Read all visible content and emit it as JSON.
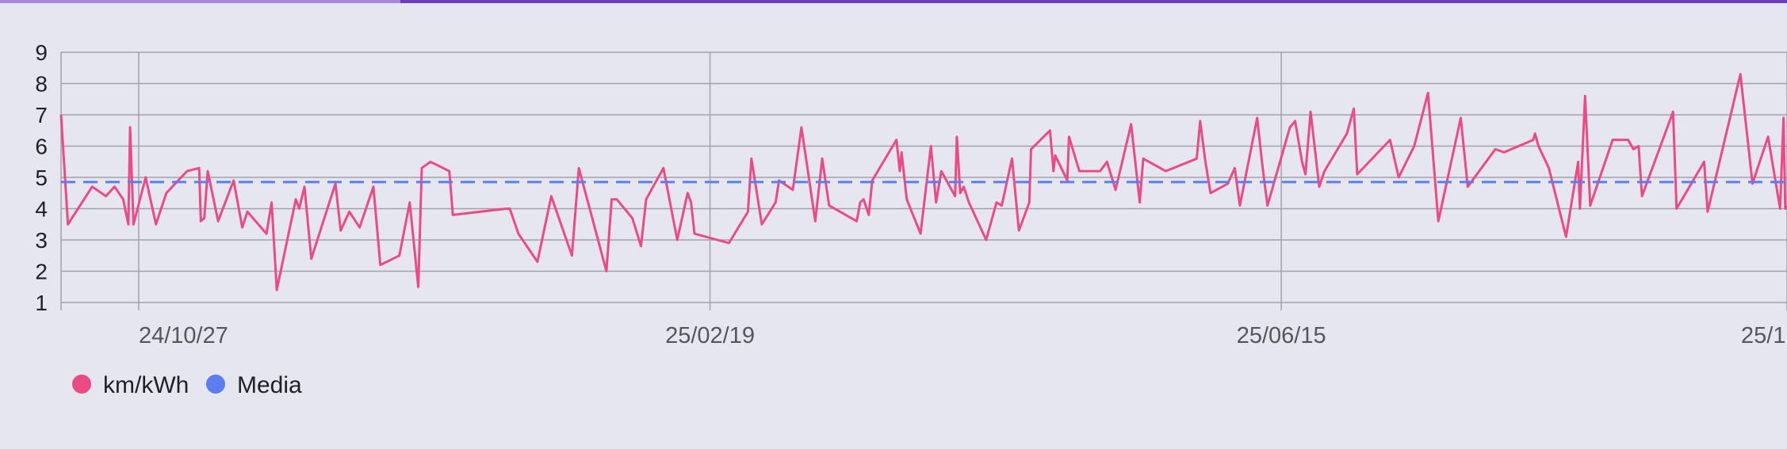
{
  "progress": {
    "fraction": 0.224,
    "track_color": "#6a3fb8",
    "fill_color": "#a889e0"
  },
  "chart_data": {
    "type": "line",
    "y_ticks": [
      "1",
      "2",
      "3",
      "4",
      "5",
      "6",
      "7",
      "8",
      "9"
    ],
    "ylim": [
      1,
      9
    ],
    "x_ticks": [
      "24/10/27",
      "25/02/19",
      "25/06/15",
      "25/1"
    ],
    "x_tick_positions": [
      0.045,
      0.376,
      0.707,
      1.0
    ],
    "grid": {
      "horizontal": true,
      "vertical": true
    },
    "legend": {
      "placement": "bottom-left",
      "entries": [
        {
          "name": "km/kWh",
          "color": "#ec4a85"
        },
        {
          "name": "Media",
          "color": "#5c7cf0"
        }
      ]
    },
    "series": [
      {
        "name": "km/kWh",
        "color": "#ec4a85",
        "points": [
          [
            0.0,
            7.0
          ],
          [
            0.004,
            3.5
          ],
          [
            0.018,
            4.7
          ],
          [
            0.026,
            4.4
          ],
          [
            0.031,
            4.7
          ],
          [
            0.036,
            4.3
          ],
          [
            0.039,
            3.5
          ],
          [
            0.04,
            6.6
          ],
          [
            0.042,
            3.5
          ],
          [
            0.049,
            5.0
          ],
          [
            0.055,
            3.5
          ],
          [
            0.061,
            4.5
          ],
          [
            0.073,
            5.2
          ],
          [
            0.08,
            5.3
          ],
          [
            0.081,
            3.6
          ],
          [
            0.083,
            3.7
          ],
          [
            0.085,
            5.2
          ],
          [
            0.091,
            3.6
          ],
          [
            0.1,
            4.9
          ],
          [
            0.105,
            3.4
          ],
          [
            0.108,
            3.9
          ],
          [
            0.119,
            3.2
          ],
          [
            0.122,
            4.2
          ],
          [
            0.125,
            1.4
          ],
          [
            0.136,
            4.3
          ],
          [
            0.138,
            4.0
          ],
          [
            0.141,
            4.7
          ],
          [
            0.145,
            2.4
          ],
          [
            0.159,
            4.8
          ],
          [
            0.162,
            3.3
          ],
          [
            0.167,
            3.9
          ],
          [
            0.173,
            3.4
          ],
          [
            0.181,
            4.7
          ],
          [
            0.185,
            2.2
          ],
          [
            0.196,
            2.5
          ],
          [
            0.202,
            4.2
          ],
          [
            0.207,
            1.5
          ],
          [
            0.209,
            5.3
          ],
          [
            0.214,
            5.5
          ],
          [
            0.225,
            5.2
          ],
          [
            0.227,
            3.8
          ],
          [
            0.258,
            4.0
          ],
          [
            0.26,
            4.0
          ],
          [
            0.265,
            3.2
          ],
          [
            0.276,
            2.3
          ],
          [
            0.284,
            4.4
          ],
          [
            0.296,
            2.5
          ],
          [
            0.3,
            5.3
          ],
          [
            0.316,
            2.0
          ],
          [
            0.319,
            4.3
          ],
          [
            0.322,
            4.3
          ],
          [
            0.331,
            3.7
          ],
          [
            0.336,
            2.8
          ],
          [
            0.339,
            4.3
          ],
          [
            0.349,
            5.3
          ],
          [
            0.357,
            3.0
          ],
          [
            0.363,
            4.5
          ],
          [
            0.365,
            4.2
          ],
          [
            0.367,
            3.2
          ],
          [
            0.387,
            2.9
          ],
          [
            0.398,
            3.9
          ],
          [
            0.4,
            5.6
          ],
          [
            0.406,
            3.5
          ],
          [
            0.414,
            4.2
          ],
          [
            0.416,
            4.9
          ],
          [
            0.424,
            4.6
          ],
          [
            0.429,
            6.6
          ],
          [
            0.437,
            3.6
          ],
          [
            0.441,
            5.6
          ],
          [
            0.445,
            4.1
          ],
          [
            0.461,
            3.6
          ],
          [
            0.463,
            4.2
          ],
          [
            0.465,
            4.3
          ],
          [
            0.468,
            3.8
          ],
          [
            0.47,
            4.9
          ],
          [
            0.484,
            6.2
          ],
          [
            0.486,
            5.2
          ],
          [
            0.487,
            5.8
          ],
          [
            0.49,
            4.3
          ],
          [
            0.498,
            3.2
          ],
          [
            0.504,
            6.0
          ],
          [
            0.507,
            4.2
          ],
          [
            0.51,
            5.2
          ],
          [
            0.518,
            4.4
          ],
          [
            0.519,
            6.3
          ],
          [
            0.521,
            4.5
          ],
          [
            0.523,
            4.7
          ],
          [
            0.526,
            4.2
          ],
          [
            0.536,
            3.0
          ],
          [
            0.542,
            4.2
          ],
          [
            0.545,
            4.1
          ],
          [
            0.551,
            5.6
          ],
          [
            0.555,
            3.3
          ],
          [
            0.561,
            4.2
          ],
          [
            0.562,
            5.9
          ],
          [
            0.573,
            6.5
          ],
          [
            0.575,
            5.2
          ],
          [
            0.576,
            5.7
          ],
          [
            0.583,
            4.9
          ],
          [
            0.584,
            6.3
          ],
          [
            0.59,
            5.2
          ],
          [
            0.602,
            5.2
          ],
          [
            0.606,
            5.5
          ],
          [
            0.611,
            4.6
          ],
          [
            0.62,
            6.7
          ],
          [
            0.625,
            4.2
          ],
          [
            0.627,
            5.6
          ],
          [
            0.64,
            5.2
          ],
          [
            0.658,
            5.6
          ],
          [
            0.66,
            6.8
          ],
          [
            0.663,
            5.5
          ],
          [
            0.666,
            4.5
          ],
          [
            0.676,
            4.8
          ],
          [
            0.68,
            5.3
          ],
          [
            0.683,
            4.1
          ],
          [
            0.693,
            6.9
          ],
          [
            0.696,
            5.4
          ],
          [
            0.699,
            4.1
          ],
          [
            0.712,
            6.6
          ],
          [
            0.715,
            6.8
          ],
          [
            0.719,
            5.5
          ],
          [
            0.721,
            5.1
          ],
          [
            0.724,
            7.1
          ],
          [
            0.729,
            4.7
          ],
          [
            0.732,
            5.2
          ],
          [
            0.745,
            6.4
          ],
          [
            0.749,
            7.2
          ],
          [
            0.751,
            5.1
          ],
          [
            0.77,
            6.2
          ],
          [
            0.775,
            5.0
          ],
          [
            0.784,
            6.0
          ],
          [
            0.792,
            7.7
          ],
          [
            0.798,
            3.6
          ],
          [
            0.811,
            6.9
          ],
          [
            0.815,
            4.7
          ],
          [
            0.831,
            5.9
          ],
          [
            0.836,
            5.8
          ],
          [
            0.853,
            6.2
          ],
          [
            0.854,
            6.4
          ],
          [
            0.856,
            6.0
          ],
          [
            0.862,
            5.3
          ],
          [
            0.872,
            3.1
          ],
          [
            0.879,
            5.5
          ],
          [
            0.88,
            4.0
          ],
          [
            0.883,
            7.6
          ],
          [
            0.886,
            4.1
          ],
          [
            0.899,
            6.2
          ],
          [
            0.908,
            6.2
          ],
          [
            0.911,
            5.9
          ],
          [
            0.914,
            6.0
          ],
          [
            0.916,
            4.4
          ],
          [
            0.934,
            7.1
          ],
          [
            0.936,
            4.0
          ],
          [
            0.952,
            5.5
          ],
          [
            0.954,
            3.9
          ],
          [
            0.973,
            8.3
          ],
          [
            0.98,
            4.8
          ],
          [
            0.989,
            6.3
          ],
          [
            0.996,
            4.0
          ],
          [
            0.998,
            6.9
          ],
          [
            0.999,
            4.0
          ],
          [
            1.0,
            4.1
          ]
        ]
      },
      {
        "name": "Media",
        "color": "#5c7cf0",
        "constant": 4.85,
        "dashed": true
      }
    ]
  }
}
